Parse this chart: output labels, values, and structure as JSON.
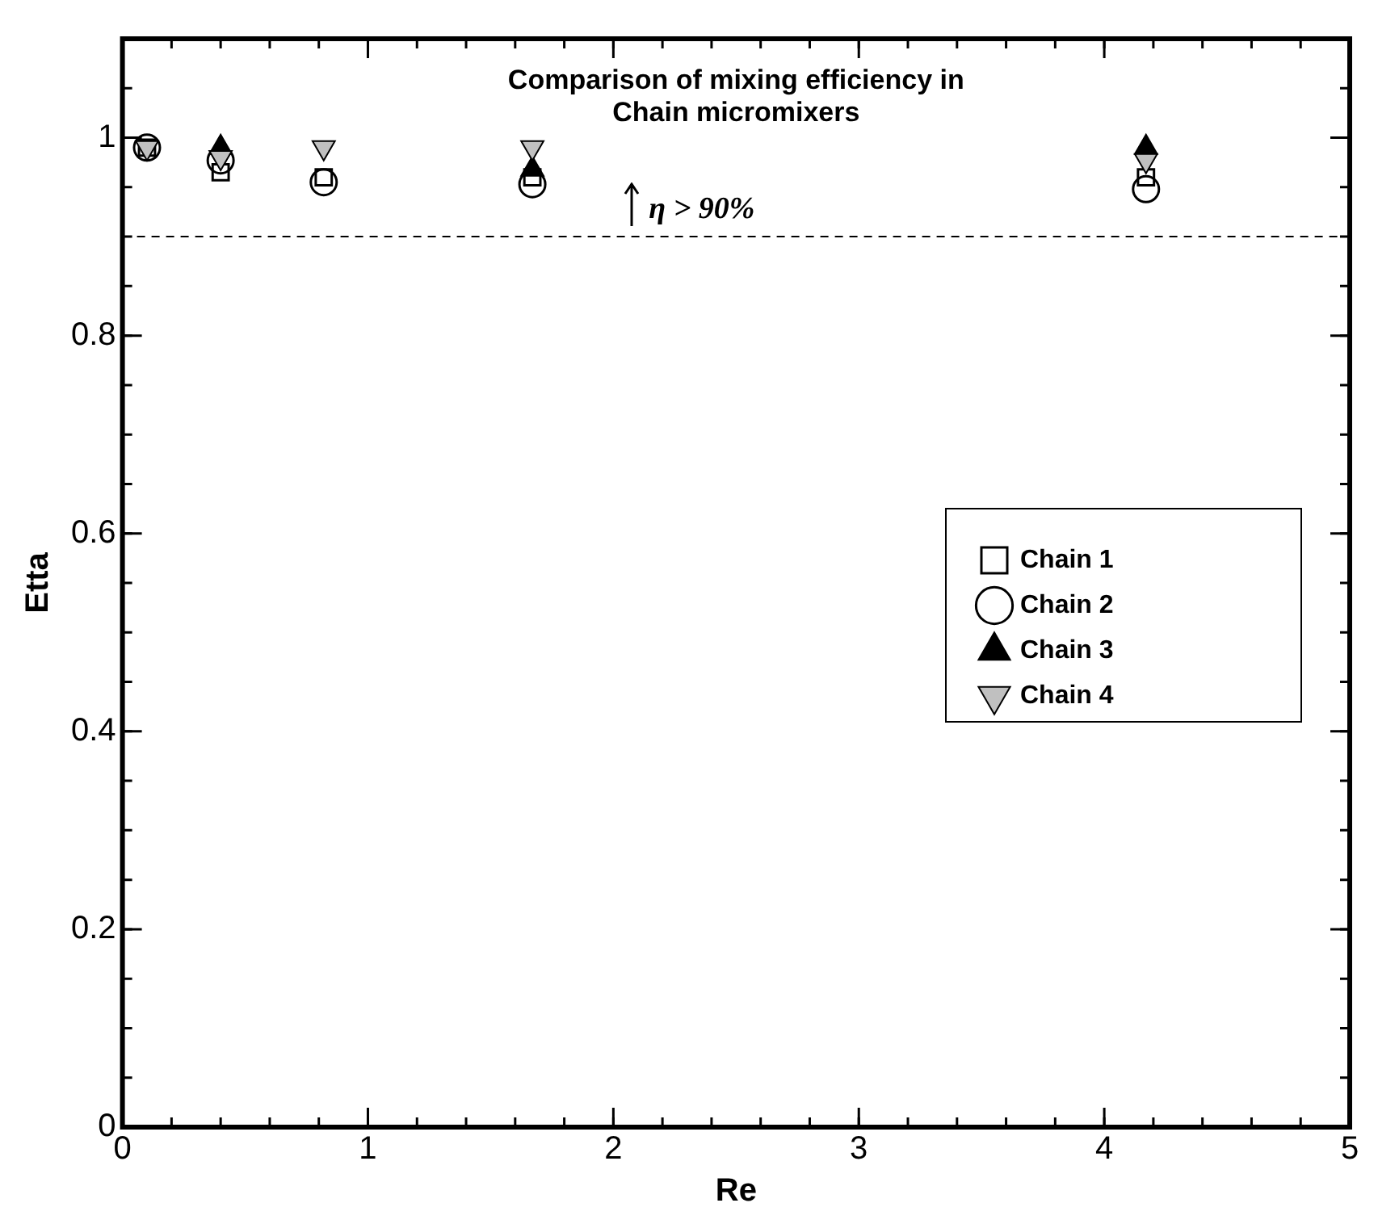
{
  "chart_data": {
    "type": "scatter",
    "title": "Comparison of mixing efficiency in Chain micromixers",
    "xlabel": "Re",
    "ylabel": "Etta",
    "x": [
      0.1,
      0.4,
      0.82,
      1.67,
      4.17
    ],
    "series": [
      {
        "name": "Chain 1",
        "color": "#000000",
        "marker": "square",
        "values": [
          0.99,
          0.965,
          0.96,
          0.96,
          0.96
        ]
      },
      {
        "name": "Chain 2",
        "color": "#000000",
        "marker": "circle",
        "values": [
          0.99,
          0.977,
          0.955,
          0.953,
          0.948
        ]
      },
      {
        "name": "Chain 3",
        "color": "#000000",
        "marker": "triangle",
        "values": [
          null,
          0.99,
          null,
          0.968,
          0.99
        ]
      },
      {
        "name": "Chain 4",
        "color": "#c0c0c0",
        "marker": "triangle",
        "values": [
          0.99,
          0.98,
          0.99,
          0.99,
          0.977
        ]
      }
    ],
    "xlim": [
      0,
      5
    ],
    "xticks": [
      0,
      1,
      2,
      3,
      4,
      5
    ],
    "ylim": [
      0,
      1.1
    ],
    "yticks": [
      0,
      0.2,
      0.4,
      0.6,
      0.8,
      1
    ],
    "ref_lines": [
      {
        "axis": "y",
        "value": 0.9,
        "line_style": "dashed",
        "color": "#000000"
      }
    ],
    "annotations": [
      "η > 90%"
    ],
    "grid": false,
    "legend": "right"
  }
}
